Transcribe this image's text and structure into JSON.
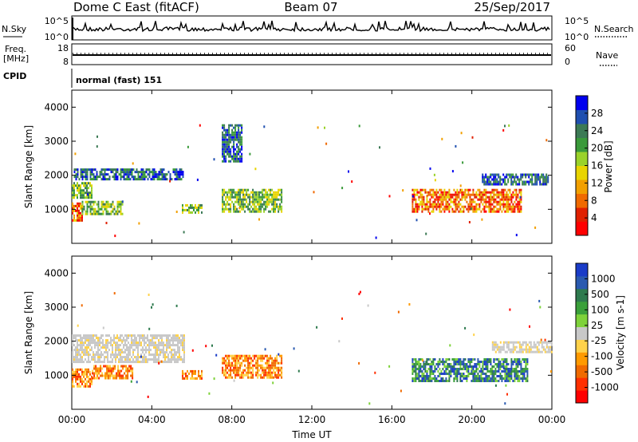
{
  "header": {
    "station": "Dome C East (fitACF)",
    "beam": "Beam 07",
    "date": "25/Sep/2017"
  },
  "top_panels": {
    "nsky": {
      "label": "N.Sky",
      "ticks": [
        "10^5",
        "10^0"
      ],
      "right_label": "N.Search",
      "right_ticks": [
        "10^5",
        "10^0"
      ]
    },
    "freq": {
      "label_line1": "Freq.",
      "label_line2": "[MHz]",
      "ticks": [
        "18",
        "8"
      ],
      "right_label": "Nave",
      "right_ticks": [
        "60",
        "0"
      ]
    },
    "cpid": {
      "label": "CPID",
      "value": "normal (fast) 151"
    }
  },
  "chart_data": [
    {
      "type": "heatmap",
      "name": "power",
      "ylabel": "Slant Range [km]",
      "ylim": [
        0,
        4500
      ],
      "yticks": [
        "1000",
        "2000",
        "3000",
        "4000"
      ],
      "xlim_hours": [
        0,
        24
      ],
      "colorbar": {
        "label": "Power [dB]",
        "range": [
          0,
          32
        ],
        "tick_labels": [
          "4",
          "8",
          "12",
          "16",
          "20",
          "24",
          "28"
        ],
        "colors": [
          "#0000ee",
          "#1f4fb0",
          "#3c7a55",
          "#3a9a3a",
          "#9ad22a",
          "#e8d400",
          "#f2a000",
          "#f06a00",
          "#e02000",
          "#ff0000"
        ]
      },
      "regions": [
        {
          "t": [
            0.0,
            0.5
          ],
          "r": [
            700,
            1200
          ],
          "level": "high"
        },
        {
          "t": [
            0.0,
            1.0
          ],
          "r": [
            1350,
            1800
          ],
          "level": "mid"
        },
        {
          "t": [
            0.1,
            5.6
          ],
          "r": [
            1850,
            2200
          ],
          "level": "low"
        },
        {
          "t": [
            0.5,
            2.5
          ],
          "r": [
            850,
            1250
          ],
          "level": "mid"
        },
        {
          "t": [
            5.5,
            6.5
          ],
          "r": [
            900,
            1150
          ],
          "level": "mid"
        },
        {
          "t": [
            7.5,
            10.5
          ],
          "r": [
            900,
            1600
          ],
          "level": "mid"
        },
        {
          "t": [
            7.5,
            8.5
          ],
          "r": [
            2400,
            3500
          ],
          "level": "low"
        },
        {
          "t": [
            17.0,
            22.5
          ],
          "r": [
            900,
            1600
          ],
          "level": "high"
        },
        {
          "t": [
            20.5,
            23.8
          ],
          "r": [
            1700,
            2050
          ],
          "level": "low"
        }
      ]
    },
    {
      "type": "heatmap",
      "name": "velocity",
      "ylabel": "Slant Range [km]",
      "ylim": [
        0,
        4500
      ],
      "yticks": [
        "1000",
        "2000",
        "3000",
        "4000"
      ],
      "xlim_hours": [
        0,
        24
      ],
      "xticks": [
        "00:00",
        "04:00",
        "08:00",
        "12:00",
        "16:00",
        "20:00",
        "00:00"
      ],
      "xlabel": "Time UT",
      "colorbar": {
        "label": "Velocity [m s-1]",
        "tick_labels": [
          "1000",
          "500",
          "100",
          "25",
          "-25",
          "-100",
          "-500",
          "-1000"
        ],
        "colors": [
          "#1a3cc8",
          "#2a5ab0",
          "#2e7a4e",
          "#3aa03a",
          "#7ed23a",
          "#c8c8c8",
          "#ffd24a",
          "#ff9a00",
          "#f06a00",
          "#ff3000",
          "#ff0000"
        ]
      },
      "regions": [
        {
          "t": [
            0.0,
            1.0
          ],
          "r": [
            700,
            1200
          ],
          "category": "negative"
        },
        {
          "t": [
            0.0,
            5.6
          ],
          "r": [
            1400,
            2200
          ],
          "category": "near-zero"
        },
        {
          "t": [
            1.0,
            3.0
          ],
          "r": [
            900,
            1300
          ],
          "category": "negative"
        },
        {
          "t": [
            5.5,
            6.5
          ],
          "r": [
            900,
            1150
          ],
          "category": "negative"
        },
        {
          "t": [
            7.5,
            10.5
          ],
          "r": [
            900,
            1600
          ],
          "category": "negative"
        },
        {
          "t": [
            17.0,
            22.8
          ],
          "r": [
            800,
            1500
          ],
          "category": "positive"
        },
        {
          "t": [
            21.0,
            24.0
          ],
          "r": [
            1700,
            2000
          ],
          "category": "near-zero"
        }
      ]
    }
  ]
}
